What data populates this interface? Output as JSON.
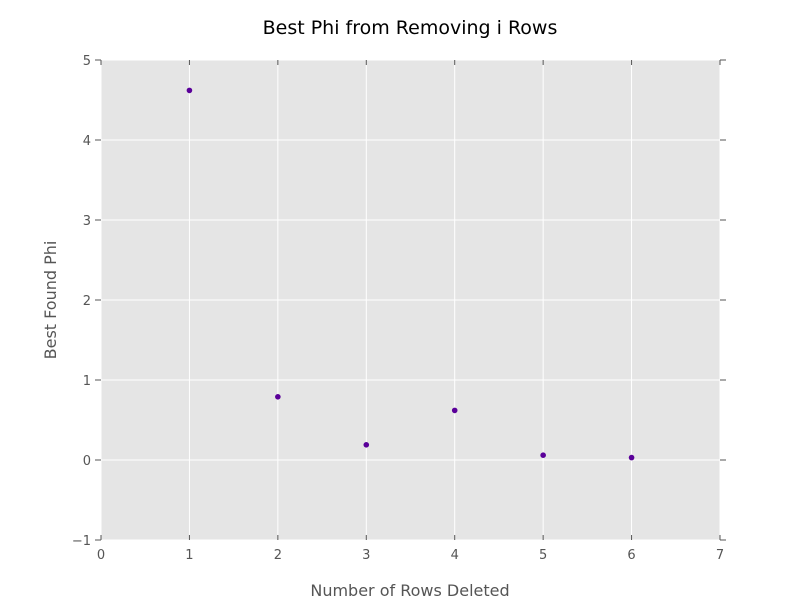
{
  "chart_data": {
    "type": "scatter",
    "title": "Best Phi from Removing i Rows",
    "xlabel": "Number of Rows Deleted",
    "ylabel": "Best Found Phi",
    "xlim": [
      0,
      7
    ],
    "ylim": [
      -1,
      5
    ],
    "xticks": [
      0,
      1,
      2,
      3,
      4,
      5,
      6,
      7
    ],
    "yticks": [
      -1,
      0,
      1,
      2,
      3,
      4,
      5
    ],
    "xtick_labels": [
      "0",
      "1",
      "2",
      "3",
      "4",
      "5",
      "6",
      "7"
    ],
    "ytick_labels": [
      "−1",
      "0",
      "1",
      "2",
      "3",
      "4",
      "5"
    ],
    "grid": true,
    "background_color": "#e5e5e5",
    "grid_color": "#ffffff",
    "point_color": "#5a0099",
    "series": [
      {
        "x": [
          1,
          2,
          3,
          4,
          5,
          6
        ],
        "y": [
          4.62,
          0.79,
          0.19,
          0.62,
          0.06,
          0.03
        ]
      }
    ]
  }
}
